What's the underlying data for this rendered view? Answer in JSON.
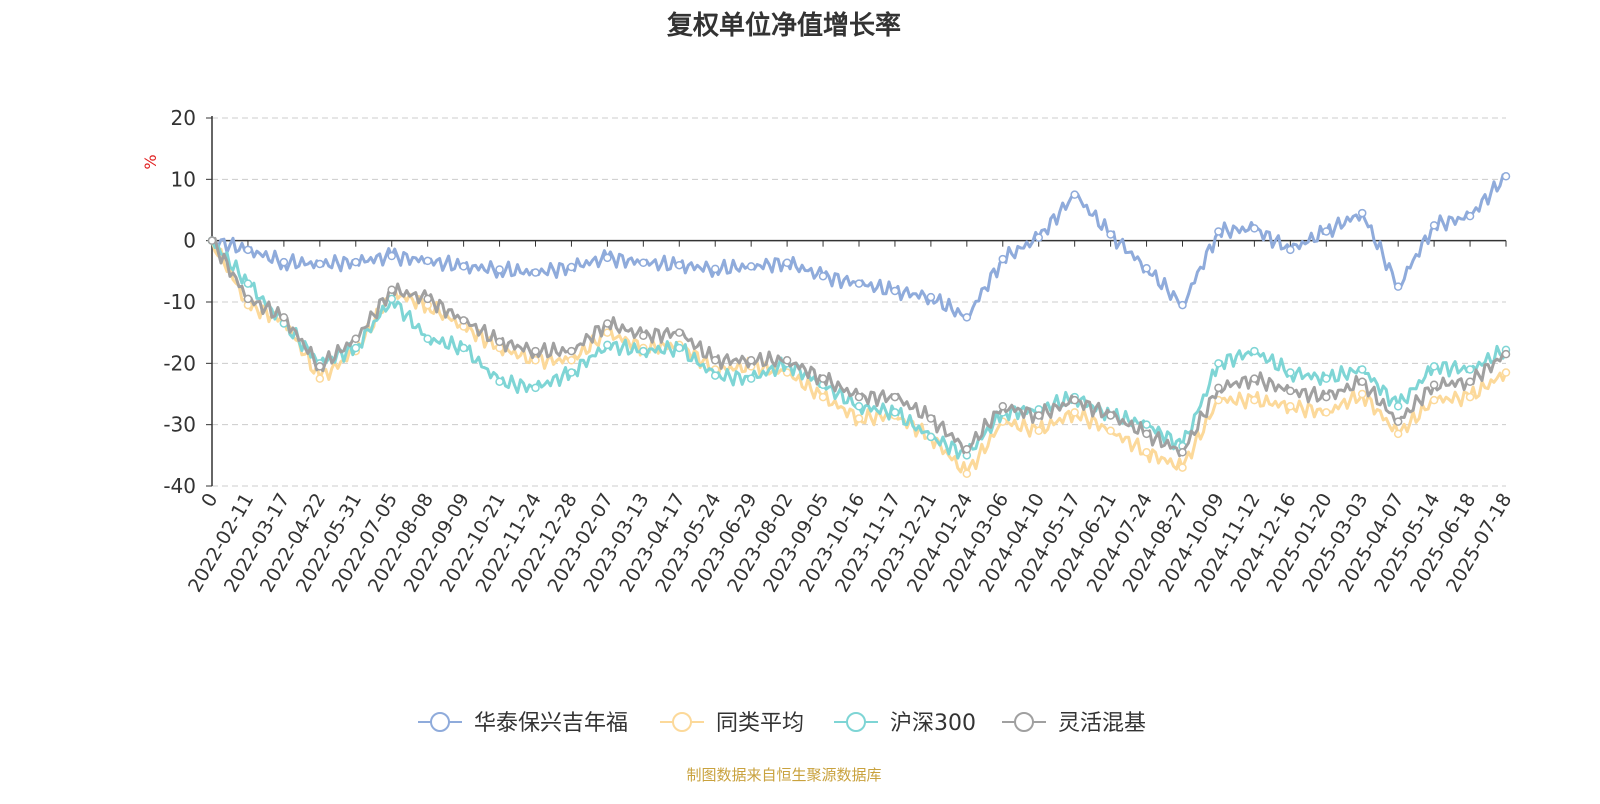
{
  "chart_data": {
    "type": "line",
    "title": "复权单位净值增长率",
    "ylabel": "%",
    "ylim": [
      -40,
      20
    ],
    "yticks": [
      20,
      10,
      0,
      -10,
      -20,
      -30,
      -40
    ],
    "grid": true,
    "legend_position": "bottom",
    "categories": [
      "0",
      "2022-02-11",
      "2022-03-17",
      "2022-04-22",
      "2022-05-31",
      "2022-07-05",
      "2022-08-08",
      "2022-09-09",
      "2022-10-21",
      "2022-11-24",
      "2022-12-28",
      "2023-02-07",
      "2023-03-13",
      "2023-04-17",
      "2023-05-24",
      "2023-06-29",
      "2023-08-02",
      "2023-09-05",
      "2023-10-16",
      "2023-11-17",
      "2023-12-21",
      "2024-01-24",
      "2024-03-06",
      "2024-04-10",
      "2024-05-17",
      "2024-06-21",
      "2024-07-24",
      "2024-08-27",
      "2024-10-09",
      "2024-11-12",
      "2024-12-16",
      "2025-01-20",
      "2025-03-03",
      "2025-04-07",
      "2025-05-14",
      "2025-06-18",
      "2025-07-18"
    ],
    "series": [
      {
        "name": "华泰保兴吉年福",
        "color": "#8fabdb",
        "values": [
          0,
          -1.5,
          -3.5,
          -3.8,
          -3.5,
          -2.5,
          -3.3,
          -4.2,
          -4.7,
          -5.2,
          -4.3,
          -2.8,
          -3.6,
          -4.0,
          -4.6,
          -4.2,
          -3.6,
          -5.8,
          -7.0,
          -8.2,
          -9.2,
          -12.5,
          -3.0,
          0.5,
          7.5,
          1.0,
          -4.5,
          -10.5,
          1.5,
          2.0,
          -1.5,
          1.5,
          4.5,
          -7.5,
          2.5,
          4.0,
          10.5
        ]
      },
      {
        "name": "同类平均",
        "color": "#fcd99a",
        "values": [
          0,
          -10.5,
          -13.0,
          -22.5,
          -18.0,
          -8.5,
          -10.5,
          -14.0,
          -17.5,
          -19.5,
          -19.5,
          -15.0,
          -17.5,
          -17.0,
          -21.0,
          -20.5,
          -21.5,
          -25.5,
          -29.0,
          -28.5,
          -32.0,
          -38.0,
          -29.5,
          -31.0,
          -28.0,
          -31.0,
          -34.5,
          -37.0,
          -26.0,
          -26.0,
          -27.0,
          -28.0,
          -25.0,
          -31.5,
          -26.0,
          -25.5,
          -21.5
        ]
      },
      {
        "name": "沪深300",
        "color": "#7ed5d5",
        "values": [
          0,
          -7.0,
          -13.5,
          -20.0,
          -17.5,
          -9.5,
          -16.0,
          -17.5,
          -23.0,
          -24.0,
          -21.5,
          -17.0,
          -18.0,
          -17.5,
          -22.0,
          -22.5,
          -20.0,
          -23.5,
          -27.0,
          -28.0,
          -32.0,
          -35.0,
          -28.0,
          -27.5,
          -25.5,
          -28.5,
          -30.0,
          -33.5,
          -20.0,
          -18.0,
          -21.5,
          -22.5,
          -21.0,
          -27.0,
          -20.5,
          -21.0,
          -17.8
        ]
      },
      {
        "name": "灵活混基",
        "color": "#a0a0a0",
        "values": [
          0,
          -9.5,
          -12.5,
          -20.5,
          -16.0,
          -8.0,
          -9.5,
          -13.0,
          -16.5,
          -18.0,
          -18.0,
          -13.5,
          -15.5,
          -15.0,
          -19.5,
          -19.5,
          -19.5,
          -22.5,
          -25.5,
          -25.5,
          -29.0,
          -34.0,
          -27.0,
          -28.5,
          -26.0,
          -28.5,
          -31.5,
          -34.5,
          -24.0,
          -22.5,
          -24.5,
          -25.5,
          -23.0,
          -29.5,
          -23.5,
          -23.0,
          -18.5
        ]
      }
    ]
  },
  "footer": {
    "source": "制图数据来自恒生聚源数据库",
    "source_color": "#c9a23e"
  }
}
